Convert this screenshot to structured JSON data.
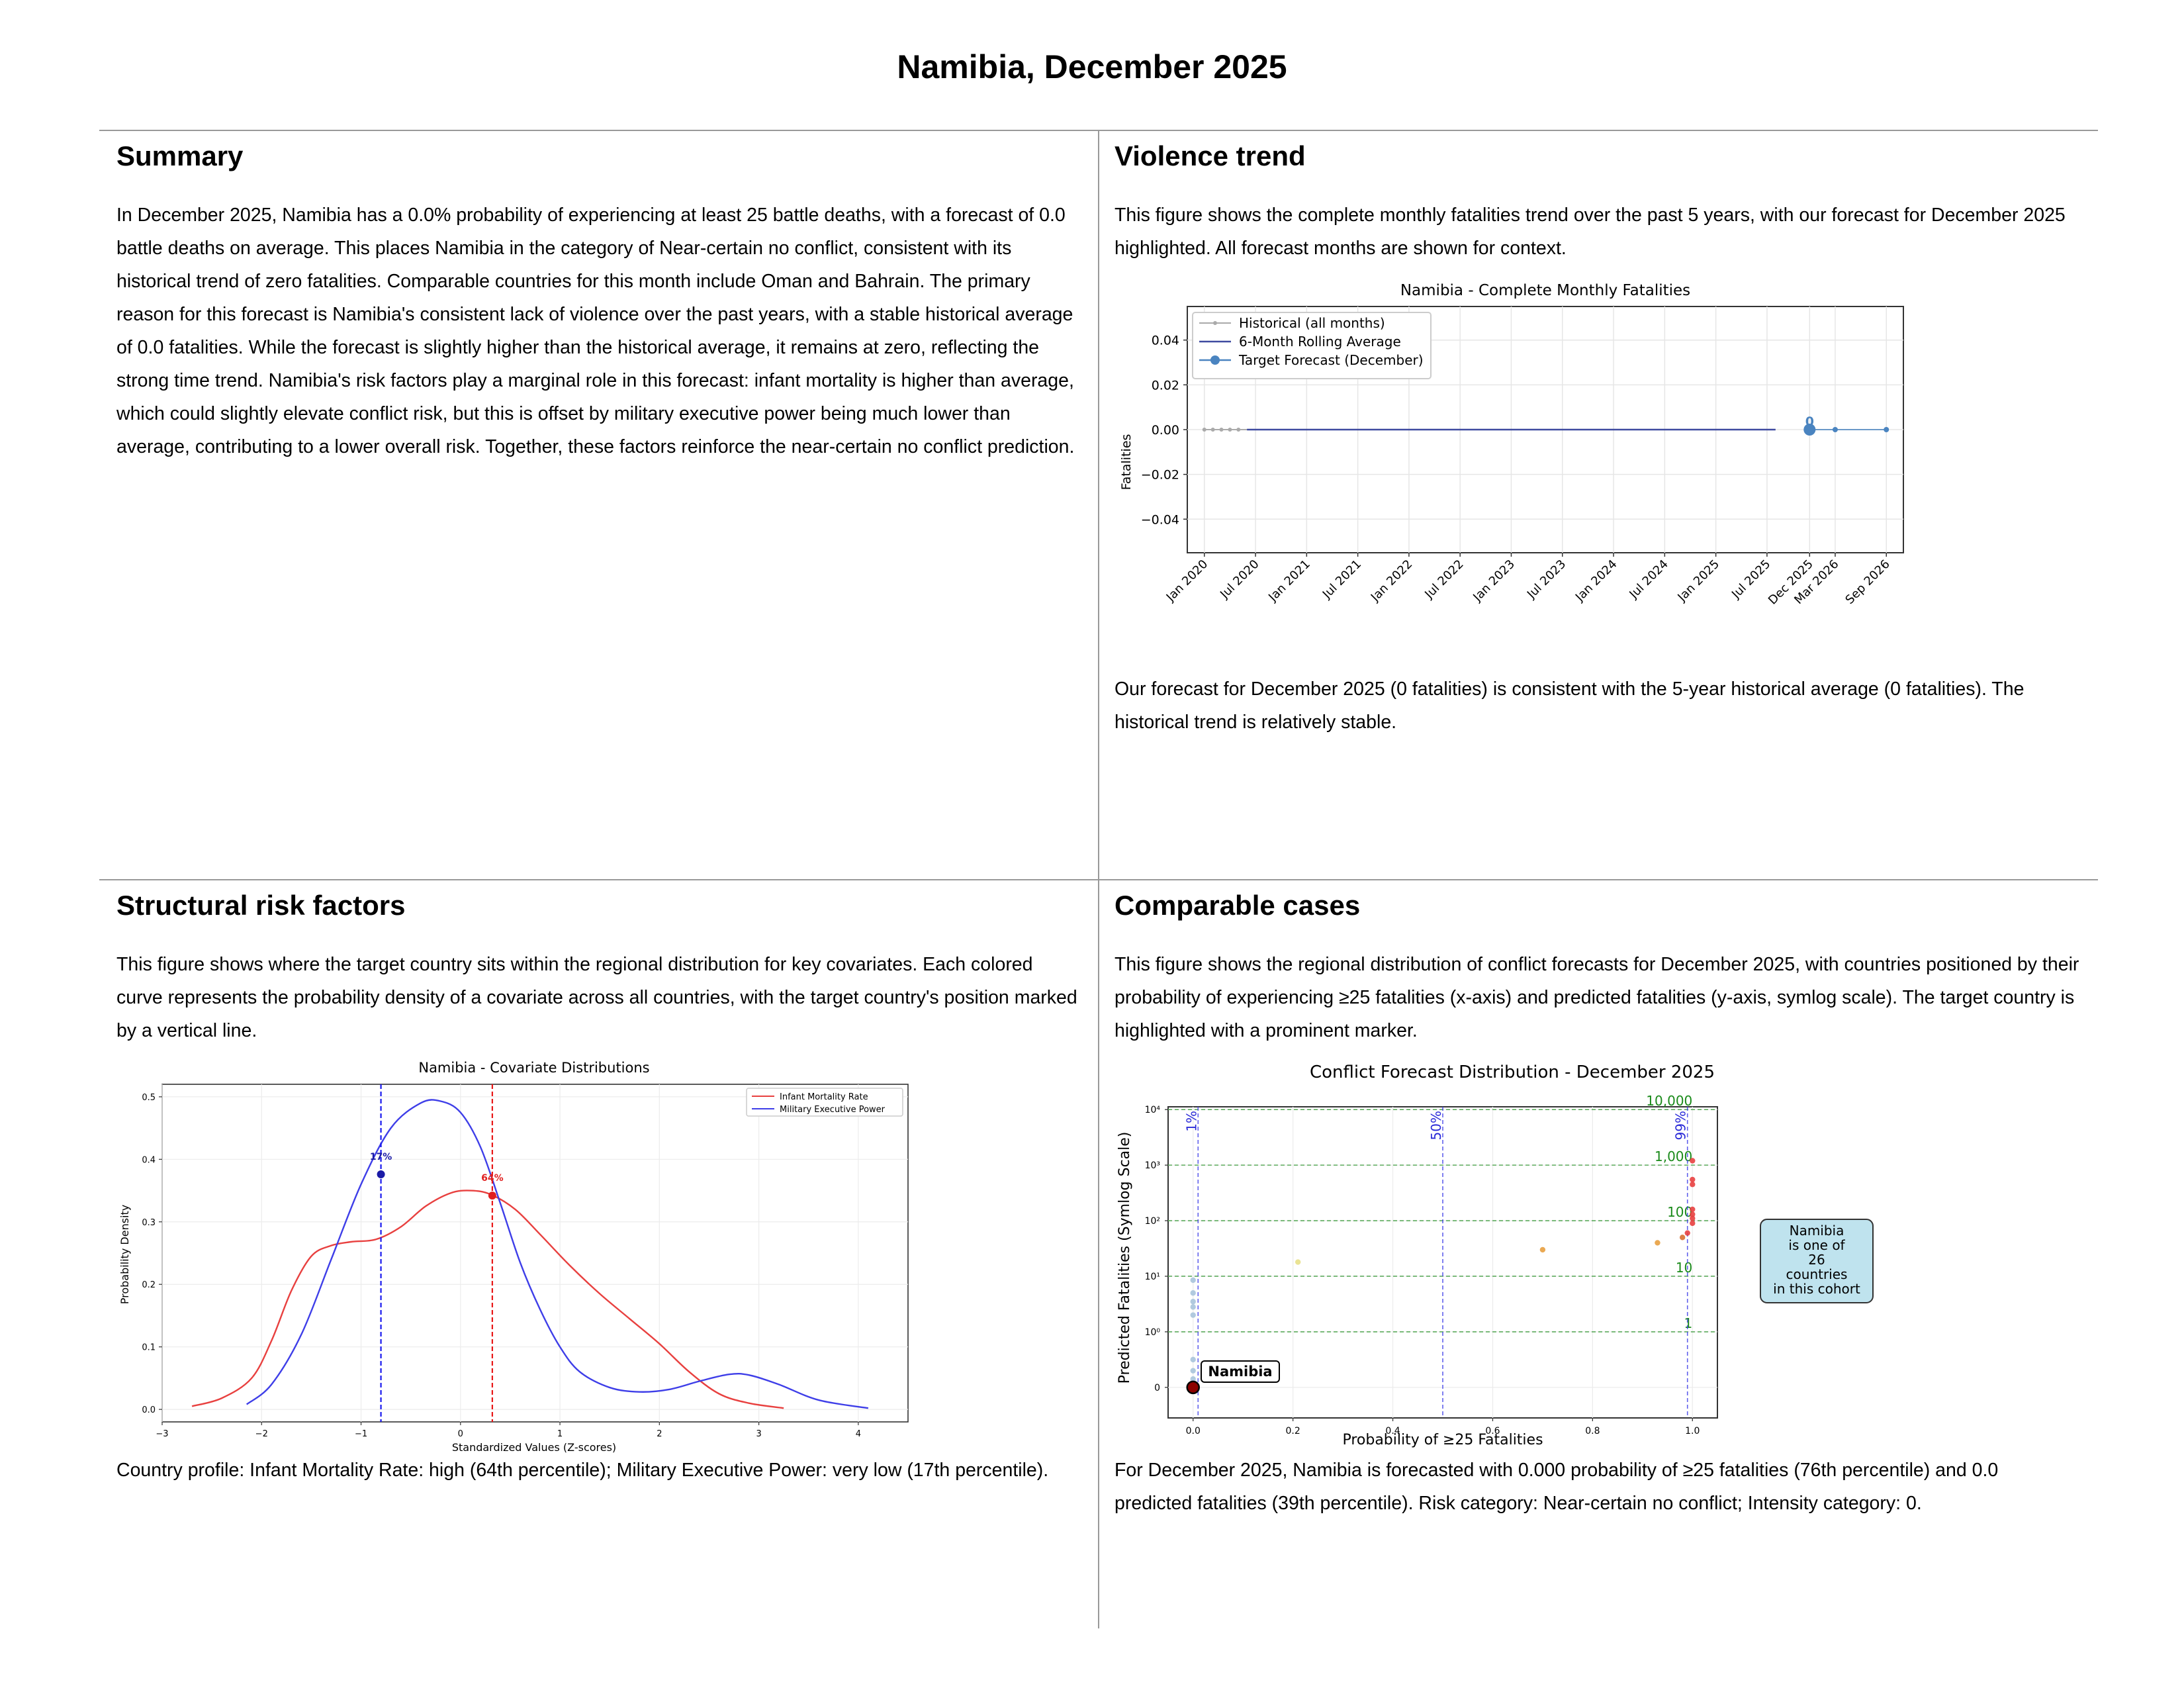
{
  "page_title": "Namibia, December 2025",
  "sections": {
    "summary": {
      "heading": "Summary",
      "text": "In December 2025, Namibia has a 0.0% probability of experiencing at least 25 battle deaths, with a forecast of 0.0 battle deaths on average. This places Namibia in the category of Near-certain no conflict, consistent with its historical trend of zero fatalities. Comparable countries for this month include Oman and Bahrain. The primary reason for this forecast is Namibia's consistent lack of violence over the past years, with a stable historical average of 0.0 fatalities. While the forecast is slightly higher than the historical average, it remains at zero, reflecting the strong time trend. Namibia's risk factors play a marginal role in this forecast: infant mortality is higher than average, which could slightly elevate conflict risk, but this is offset by military executive power being much lower than average, contributing to a lower overall risk. Together, these factors reinforce the near-certain no conflict prediction."
    },
    "violence_trend": {
      "heading": "Violence trend",
      "intro": "This figure shows the complete monthly fatalities trend over the past 5 years, with our forecast for December 2025 highlighted. All forecast months are shown for context.",
      "outro": "Our forecast for December 2025 (0 fatalities) is consistent with the 5-year historical average (0 fatalities). The historical trend is relatively stable."
    },
    "structural": {
      "heading": "Structural risk factors",
      "intro": "This figure shows where the target country sits within the regional distribution for key covariates. Each colored curve represents the probability density of a covariate across all countries, with the target country's position marked by a vertical line.",
      "outro": "Country profile: Infant Mortality Rate: high (64th percentile); Military Executive Power: very low (17th percentile)."
    },
    "comparable": {
      "heading": "Comparable cases",
      "intro": "This figure shows the regional distribution of conflict forecasts for December 2025, with countries positioned by their probability of experiencing ≥25 fatalities (x-axis) and predicted fatalities (y-axis, symlog scale). The target country is highlighted with a prominent marker.",
      "outro": "For December 2025, Namibia is forecasted with 0.000 probability of ≥25 fatalities (76th percentile) and 0.0 predicted fatalities (39th percentile). Risk category: Near-certain no conflict; Intensity category: 0."
    }
  },
  "chart_data": [
    {
      "type": "line",
      "title": "Namibia - Complete Monthly Fatalities",
      "ylabel": "Fatalities",
      "xlabel": "",
      "ylim": [
        -0.055,
        0.055
      ],
      "y_ticks": [
        "0.04",
        "0.02",
        "0.00",
        "−0.02",
        "−0.04"
      ],
      "y_tick_values": [
        0.04,
        0.02,
        0.0,
        -0.02,
        -0.04
      ],
      "x_ticks": [
        "Jan 2020",
        "Jul 2020",
        "Jan 2021",
        "Jul 2021",
        "Jan 2022",
        "Jul 2022",
        "Jan 2023",
        "Jul 2023",
        "Jan 2024",
        "Jul 2024",
        "Jan 2025",
        "Jul 2025",
        "Dec 2025",
        "Mar 2026",
        "Sep 2026"
      ],
      "x_tick_months": [
        0,
        6,
        12,
        18,
        24,
        30,
        36,
        42,
        48,
        54,
        60,
        66,
        71,
        74,
        80
      ],
      "xlim_months": [
        -2,
        82
      ],
      "grid": true,
      "legend_position": "upper-left",
      "legend": [
        "Historical (all months)",
        "6-Month Rolling Average",
        "Target Forecast (December)"
      ],
      "series": [
        {
          "name": "Historical (all months)",
          "x_months_start": 0,
          "x_months_end": 67,
          "value": 0,
          "color": "#aaaaaa"
        },
        {
          "name": "6-Month Rolling Average",
          "x_months_start": 5,
          "x_months_end": 67,
          "value": 0,
          "color": "#3f4aa0"
        },
        {
          "name": "Target Forecast (December)",
          "points": [
            {
              "month": 71,
              "value": 0
            }
          ],
          "forecast_months": [
            71,
            74,
            80
          ],
          "color": "#4a84c0",
          "annotation": "0"
        }
      ]
    },
    {
      "type": "line",
      "title": "Namibia - Covariate Distributions",
      "xlabel": "Standardized Values (Z-scores)",
      "ylabel": "Probability Density",
      "xlim": [
        -3,
        4.5
      ],
      "ylim": [
        -0.02,
        0.52
      ],
      "x_ticks": [
        "−3",
        "−2",
        "−1",
        "0",
        "1",
        "2",
        "3",
        "4"
      ],
      "y_ticks": [
        "0.0",
        "0.1",
        "0.2",
        "0.3",
        "0.4",
        "0.5"
      ],
      "grid": true,
      "legend_position": "upper-right",
      "series": [
        {
          "name": "Infant Mortality Rate",
          "color": "#e8403f",
          "points": [
            [
              -2.7,
              0.005
            ],
            [
              -2.4,
              0.018
            ],
            [
              -2.1,
              0.05
            ],
            [
              -1.9,
              0.11
            ],
            [
              -1.7,
              0.19
            ],
            [
              -1.5,
              0.245
            ],
            [
              -1.3,
              0.262
            ],
            [
              -1.1,
              0.268
            ],
            [
              -0.85,
              0.272
            ],
            [
              -0.6,
              0.292
            ],
            [
              -0.35,
              0.325
            ],
            [
              -0.1,
              0.346
            ],
            [
              0.1,
              0.35
            ],
            [
              0.3,
              0.344
            ],
            [
              0.55,
              0.32
            ],
            [
              0.8,
              0.28
            ],
            [
              1.1,
              0.23
            ],
            [
              1.4,
              0.185
            ],
            [
              1.7,
              0.145
            ],
            [
              2.0,
              0.105
            ],
            [
              2.3,
              0.06
            ],
            [
              2.6,
              0.025
            ],
            [
              2.9,
              0.01
            ],
            [
              3.25,
              0.002
            ]
          ]
        },
        {
          "name": "Military Executive Power",
          "color": "#3e3ee8",
          "points": [
            [
              -2.15,
              0.008
            ],
            [
              -1.9,
              0.04
            ],
            [
              -1.6,
              0.12
            ],
            [
              -1.3,
              0.24
            ],
            [
              -1.0,
              0.36
            ],
            [
              -0.7,
              0.45
            ],
            [
              -0.4,
              0.49
            ],
            [
              -0.2,
              0.493
            ],
            [
              0.0,
              0.475
            ],
            [
              0.2,
              0.42
            ],
            [
              0.4,
              0.33
            ],
            [
              0.6,
              0.235
            ],
            [
              0.8,
              0.16
            ],
            [
              1.0,
              0.1
            ],
            [
              1.2,
              0.06
            ],
            [
              1.5,
              0.035
            ],
            [
              1.8,
              0.028
            ],
            [
              2.1,
              0.032
            ],
            [
              2.4,
              0.045
            ],
            [
              2.7,
              0.056
            ],
            [
              2.9,
              0.055
            ],
            [
              3.2,
              0.04
            ],
            [
              3.6,
              0.015
            ],
            [
              4.1,
              0.002
            ]
          ]
        }
      ],
      "markers": [
        {
          "series": "Military Executive Power",
          "x": -0.8,
          "y": 0.376,
          "label": "17%",
          "color": "#1a1aa6"
        },
        {
          "series": "Infant Mortality Rate",
          "x": 0.32,
          "y": 0.342,
          "label": "64%",
          "color": "#e02020"
        }
      ]
    },
    {
      "type": "scatter",
      "title": "Conflict Forecast Distribution - December 2025",
      "xlabel": "Probability of ≥25 Fatalities",
      "ylabel": "Predicted Fatalities (Symlog Scale)",
      "xlim": [
        -0.05,
        1.05
      ],
      "x_ticks": [
        "0.0",
        "0.2",
        "0.4",
        "0.6",
        "0.8",
        "1.0"
      ],
      "y_scale": "symlog",
      "y_ticks": [
        "0",
        "10⁰",
        "10¹",
        "10²",
        "10³",
        "10⁴"
      ],
      "grid": true,
      "vertical_lines": [
        {
          "x": 0.01,
          "label": "1%"
        },
        {
          "x": 0.5,
          "label": "50%"
        },
        {
          "x": 0.99,
          "label": "99%"
        }
      ],
      "horizontal_lines": [
        {
          "y": 1,
          "label": "1"
        },
        {
          "y": 10,
          "label": "10"
        },
        {
          "y": 100,
          "label": "100"
        },
        {
          "y": 1000,
          "label": "1,000"
        },
        {
          "y": 10000,
          "label": "10,000"
        }
      ],
      "target": {
        "name": "Namibia",
        "x": 0.0,
        "y": 0.0
      },
      "info_box": "Namibia is one of 26 countries in this cohort",
      "points": [
        {
          "x": 0.0,
          "y": 0.0,
          "color": "#a9c4dc"
        },
        {
          "x": 0.0,
          "y": 0.05,
          "color": "#a9c4dc"
        },
        {
          "x": 0.0,
          "y": 0.15,
          "color": "#a9c4dc"
        },
        {
          "x": 0.0,
          "y": 0.3,
          "color": "#a9c4dc"
        },
        {
          "x": 0.0,
          "y": 0.5,
          "color": "#a9c4dc"
        },
        {
          "x": 0.0,
          "y": 2.0,
          "color": "#a9c4dc"
        },
        {
          "x": 0.0,
          "y": 2.8,
          "color": "#a9c4dc"
        },
        {
          "x": 0.0,
          "y": 3.5,
          "color": "#a9c4dc"
        },
        {
          "x": 0.0,
          "y": 5.0,
          "color": "#a9c4dc"
        },
        {
          "x": 0.0,
          "y": 8.5,
          "color": "#a9c4dc"
        },
        {
          "x": 0.21,
          "y": 18,
          "color": "#e8e088"
        },
        {
          "x": 0.7,
          "y": 30,
          "color": "#e8a040"
        },
        {
          "x": 0.93,
          "y": 40,
          "color": "#e8a040"
        },
        {
          "x": 0.98,
          "y": 50,
          "color": "#d87030"
        },
        {
          "x": 0.99,
          "y": 60,
          "color": "#e84040"
        },
        {
          "x": 1.0,
          "y": 90,
          "color": "#e84040"
        },
        {
          "x": 1.0,
          "y": 110,
          "color": "#e84040"
        },
        {
          "x": 1.0,
          "y": 130,
          "color": "#e84040"
        },
        {
          "x": 1.0,
          "y": 160,
          "color": "#e84040"
        },
        {
          "x": 1.0,
          "y": 450,
          "color": "#e84040"
        },
        {
          "x": 1.0,
          "y": 550,
          "color": "#e84040"
        },
        {
          "x": 1.0,
          "y": 1200,
          "color": "#e84040"
        }
      ]
    }
  ]
}
